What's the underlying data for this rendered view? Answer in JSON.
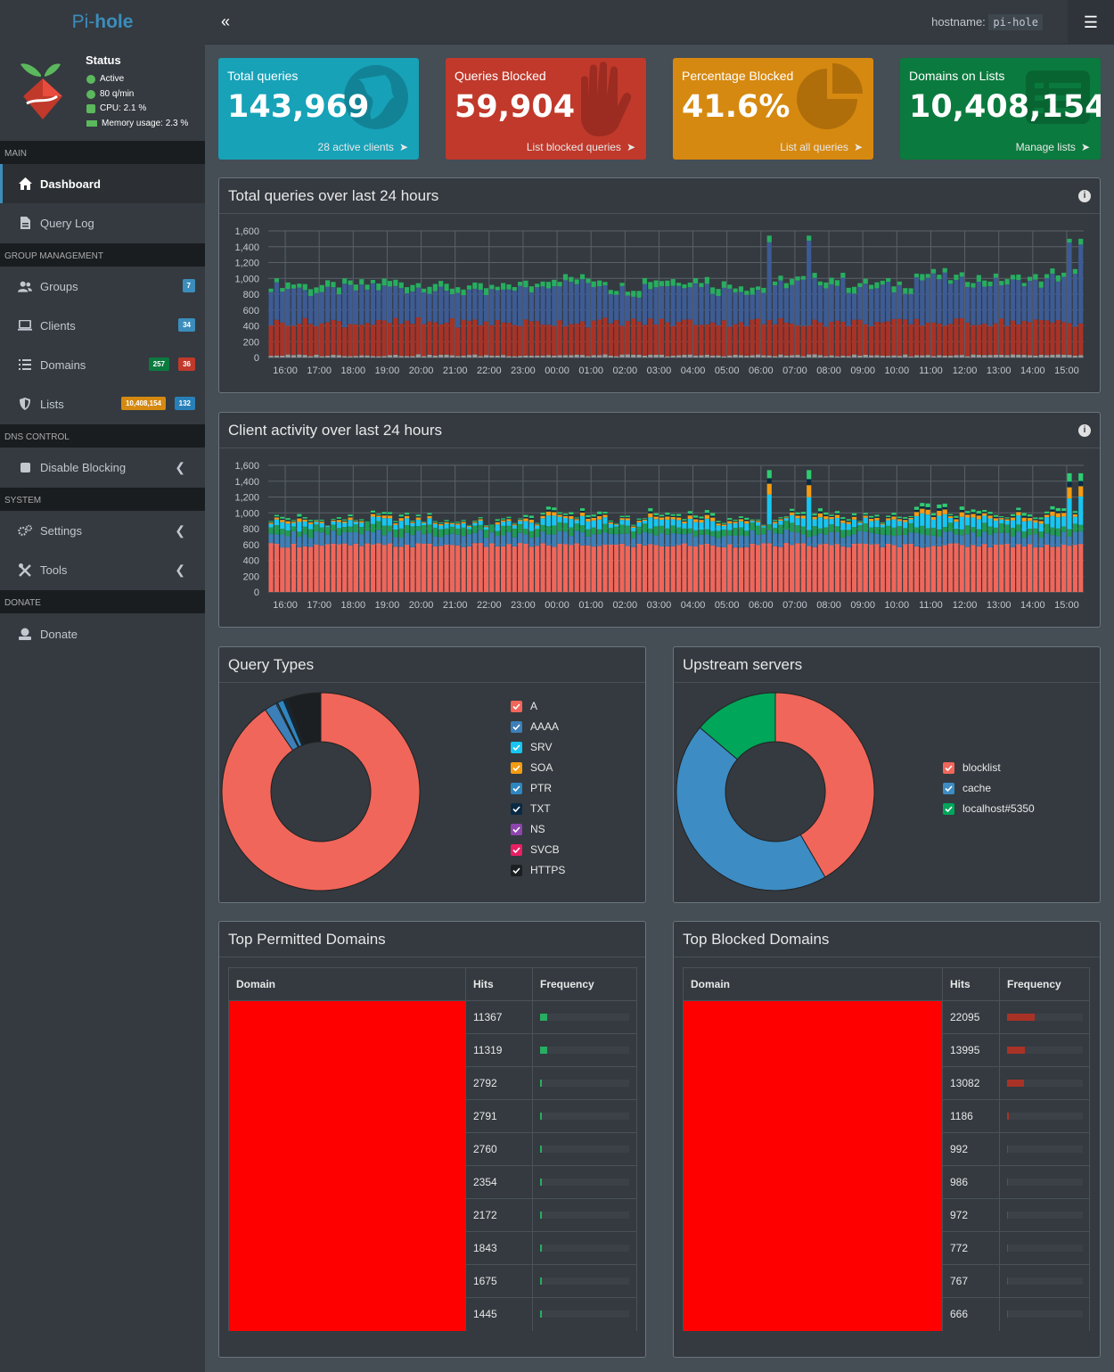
{
  "app": {
    "brand_a": "Pi-",
    "brand_b": "hole",
    "hostname_label": "hostname:",
    "hostname": "pi-hole"
  },
  "status": {
    "title": "Status",
    "active": "Active",
    "rate": "80 q/min",
    "cpu": "CPU: 2.1 %",
    "memory": "Memory usage: 2.3 %"
  },
  "sidebar": {
    "sections": {
      "main": "MAIN",
      "group": "GROUP MANAGEMENT",
      "dns": "DNS CONTROL",
      "system": "SYSTEM",
      "donate": "DONATE"
    },
    "items": [
      {
        "label": "Dashboard",
        "icon": "home-icon"
      },
      {
        "label": "Query Log",
        "icon": "file-icon"
      },
      {
        "label": "Groups",
        "icon": "users-icon",
        "badge": "7"
      },
      {
        "label": "Clients",
        "icon": "laptop-icon",
        "badge": "34"
      },
      {
        "label": "Domains",
        "icon": "list-icon",
        "badge_a": "257",
        "badge_b": "36"
      },
      {
        "label": "Lists",
        "icon": "shield-icon",
        "badge_a": "10,408,154",
        "badge_b": "132"
      },
      {
        "label": "Disable Blocking",
        "icon": "stop-icon"
      },
      {
        "label": "Settings",
        "icon": "cogs-icon"
      },
      {
        "label": "Tools",
        "icon": "tools-icon"
      },
      {
        "label": "Donate",
        "icon": "donate-icon"
      }
    ]
  },
  "stats": [
    {
      "label": "Total queries",
      "value": "143,969",
      "footer": "28 active clients",
      "color": "#17a2b8",
      "icon": "globe-icon"
    },
    {
      "label": "Queries Blocked",
      "value": "59,904",
      "footer": "List blocked queries",
      "color": "#c0392b",
      "icon": "hand-icon"
    },
    {
      "label": "Percentage Blocked",
      "value": "41.6%",
      "footer": "List all queries",
      "color": "#d68910",
      "icon": "pie-icon"
    },
    {
      "label": "Domains on Lists",
      "value": "10,408,154",
      "footer": "Manage lists",
      "color": "#0b7a3e",
      "icon": "list-alt-icon"
    }
  ],
  "charts": {
    "queries_title": "Total queries over last 24 hours",
    "clients_title": "Client activity over last 24 hours",
    "query_types_title": "Query Types",
    "upstream_title": "Upstream servers"
  },
  "chart_data": [
    {
      "type": "bar",
      "title": "Total queries over last 24 hours",
      "stacked": true,
      "x_ticks": [
        "16:00",
        "17:00",
        "18:00",
        "19:00",
        "20:00",
        "21:00",
        "22:00",
        "23:00",
        "00:00",
        "01:00",
        "02:00",
        "03:00",
        "04:00",
        "05:00",
        "06:00",
        "07:00",
        "08:00",
        "09:00",
        "10:00",
        "11:00",
        "12:00",
        "13:00",
        "14:00",
        "15:00"
      ],
      "ylim": [
        0,
        1600
      ],
      "y_ticks": [
        "0",
        "200",
        "400",
        "600",
        "800",
        "1,000",
        "1,200",
        "1,400",
        "1,600"
      ],
      "series_colors": [
        "#999999",
        "#a93226",
        "#3d5b94",
        "#27ae60"
      ],
      "approx_totals_per_hour": [
        940,
        910,
        930,
        960,
        940,
        900,
        880,
        930,
        1010,
        1000,
        900,
        990,
        990,
        930,
        900,
        990,
        1010,
        940,
        940,
        1060,
        1010,
        1000,
        1010,
        1080
      ]
    },
    {
      "type": "bar",
      "title": "Client activity over last 24 hours",
      "stacked": true,
      "x_ticks": [
        "16:00",
        "17:00",
        "18:00",
        "19:00",
        "20:00",
        "21:00",
        "22:00",
        "23:00",
        "00:00",
        "01:00",
        "02:00",
        "03:00",
        "04:00",
        "05:00",
        "06:00",
        "07:00",
        "08:00",
        "09:00",
        "10:00",
        "11:00",
        "12:00",
        "13:00",
        "14:00",
        "15:00"
      ],
      "ylim": [
        0,
        1600
      ],
      "y_ticks": [
        "0",
        "200",
        "400",
        "600",
        "800",
        "1,000",
        "1,200",
        "1,400",
        "1,600"
      ],
      "series_colors": [
        "#f1665a",
        "#3d7fb8",
        "#1e9c55",
        "#17c6f0",
        "#f39c12",
        "#0a2a44",
        "#2ecc71"
      ]
    },
    {
      "type": "pie",
      "title": "Query Types",
      "donut": true,
      "labels": [
        "A",
        "AAAA",
        "SRV",
        "SOA",
        "PTR",
        "TXT",
        "NS",
        "SVCB",
        "HTTPS"
      ],
      "values": [
        90.5,
        2.0,
        0.2,
        0.1,
        1.0,
        0.5,
        0.1,
        0.1,
        5.5
      ],
      "colors": [
        "#f1665a",
        "#3d7fb8",
        "#17c6f0",
        "#f39c12",
        "#2e86c1",
        "#0a2a44",
        "#8e44ad",
        "#e91e63",
        "#1c1f22"
      ]
    },
    {
      "type": "pie",
      "title": "Upstream servers",
      "donut": true,
      "labels": [
        "blocklist",
        "cache",
        "localhost#5350"
      ],
      "values": [
        41.6,
        44.6,
        13.8
      ],
      "colors": [
        "#f1665a",
        "#3d8cc4",
        "#00a65a"
      ]
    }
  ],
  "permitted": {
    "title": "Top Permitted Domains",
    "cols": [
      "Domain",
      "Hits",
      "Frequency"
    ],
    "rows": [
      {
        "hits": "11367",
        "f": 0.079
      },
      {
        "hits": "11319",
        "f": 0.079
      },
      {
        "hits": "2792",
        "f": 0.019
      },
      {
        "hits": "2791",
        "f": 0.019
      },
      {
        "hits": "2760",
        "f": 0.019
      },
      {
        "hits": "2354",
        "f": 0.016
      },
      {
        "hits": "2172",
        "f": 0.015
      },
      {
        "hits": "1843",
        "f": 0.013
      },
      {
        "hits": "1675",
        "f": 0.012
      },
      {
        "hits": "1445",
        "f": 0.01
      }
    ]
  },
  "blocked": {
    "title": "Top Blocked Domains",
    "cols": [
      "Domain",
      "Hits",
      "Frequency"
    ],
    "rows": [
      {
        "hits": "22095",
        "f": 0.369
      },
      {
        "hits": "13995",
        "f": 0.234
      },
      {
        "hits": "13082",
        "f": 0.218
      },
      {
        "hits": "1186",
        "f": 0.02
      },
      {
        "hits": "992",
        "f": 0.017
      },
      {
        "hits": "986",
        "f": 0.016
      },
      {
        "hits": "972",
        "f": 0.016
      },
      {
        "hits": "772",
        "f": 0.013
      },
      {
        "hits": "767",
        "f": 0.013
      },
      {
        "hits": "666",
        "f": 0.011
      }
    ]
  }
}
